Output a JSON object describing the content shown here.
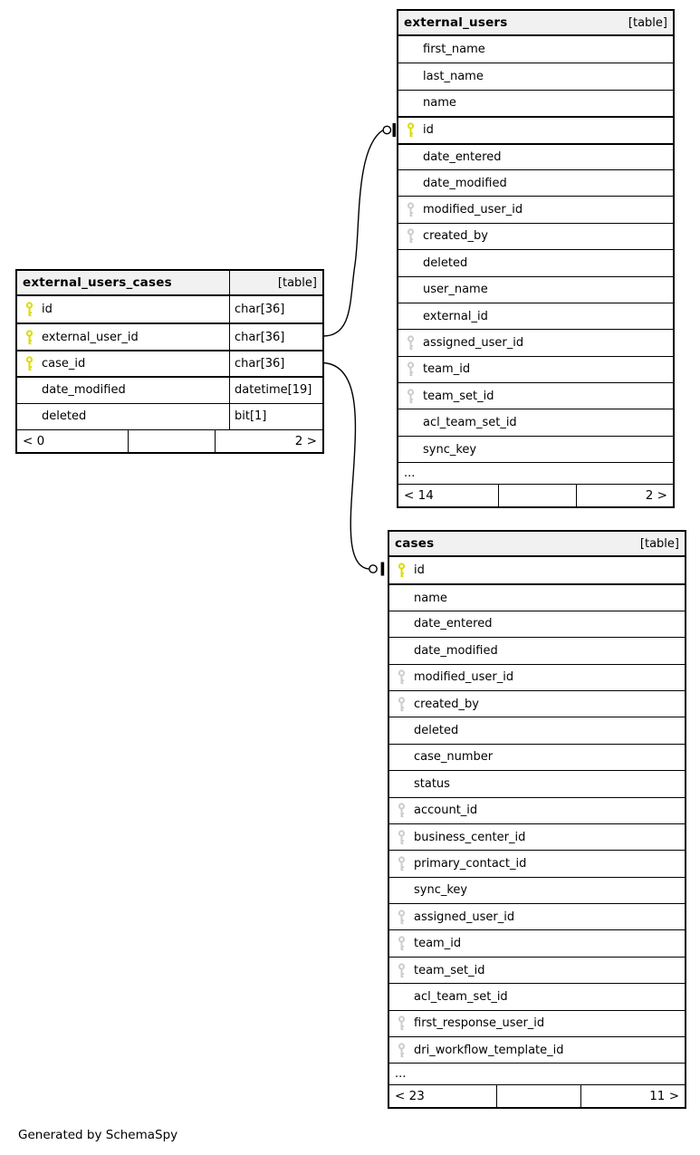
{
  "page": {
    "credit": "Generated by SchemaSpy"
  },
  "colors": {
    "primary_key": "#dcdc00",
    "foreign_key": "#cccccc",
    "header_bg": "#f1f1f1",
    "border": "#000000"
  },
  "icons": {
    "primary_key": "key-icon",
    "foreign_key": "key-icon",
    "zero_or_one_endpoint": "circle-bar-icon"
  },
  "tables": [
    {
      "name": "external_users_cases",
      "badge": "[table]",
      "has_types": true,
      "rows": [
        {
          "name": "id",
          "type": "char[36]",
          "key": "pk"
        },
        {
          "name": "external_user_id",
          "type": "char[36]",
          "key": "pk"
        },
        {
          "name": "case_id",
          "type": "char[36]",
          "key": "pk"
        },
        {
          "name": "date_modified",
          "type": "datetime[19]",
          "key": ""
        },
        {
          "name": "deleted",
          "type": "bit[1]",
          "key": ""
        }
      ],
      "pager": {
        "prev": "< 0",
        "mid": "",
        "next": "2 >"
      }
    },
    {
      "name": "external_users",
      "badge": "[table]",
      "has_types": false,
      "rows": [
        {
          "name": "first_name",
          "key": ""
        },
        {
          "name": "last_name",
          "key": ""
        },
        {
          "name": "name",
          "key": ""
        },
        {
          "name": "id",
          "key": "pk"
        },
        {
          "name": "date_entered",
          "key": ""
        },
        {
          "name": "date_modified",
          "key": ""
        },
        {
          "name": "modified_user_id",
          "key": "fk"
        },
        {
          "name": "created_by",
          "key": "fk"
        },
        {
          "name": "deleted",
          "key": ""
        },
        {
          "name": "user_name",
          "key": ""
        },
        {
          "name": "external_id",
          "key": ""
        },
        {
          "name": "assigned_user_id",
          "key": "fk"
        },
        {
          "name": "team_id",
          "key": "fk"
        },
        {
          "name": "team_set_id",
          "key": "fk"
        },
        {
          "name": "acl_team_set_id",
          "key": ""
        },
        {
          "name": "sync_key",
          "key": ""
        }
      ],
      "ellipsis": "...",
      "pager": {
        "prev": "< 14",
        "mid": "",
        "next": "2 >"
      }
    },
    {
      "name": "cases",
      "badge": "[table]",
      "has_types": false,
      "rows": [
        {
          "name": "id",
          "key": "pk"
        },
        {
          "name": "name",
          "key": ""
        },
        {
          "name": "date_entered",
          "key": ""
        },
        {
          "name": "date_modified",
          "key": ""
        },
        {
          "name": "modified_user_id",
          "key": "fk"
        },
        {
          "name": "created_by",
          "key": "fk"
        },
        {
          "name": "deleted",
          "key": ""
        },
        {
          "name": "case_number",
          "key": ""
        },
        {
          "name": "status",
          "key": ""
        },
        {
          "name": "account_id",
          "key": "fk"
        },
        {
          "name": "business_center_id",
          "key": "fk"
        },
        {
          "name": "primary_contact_id",
          "key": "fk"
        },
        {
          "name": "sync_key",
          "key": ""
        },
        {
          "name": "assigned_user_id",
          "key": "fk"
        },
        {
          "name": "team_id",
          "key": "fk"
        },
        {
          "name": "team_set_id",
          "key": "fk"
        },
        {
          "name": "acl_team_set_id",
          "key": ""
        },
        {
          "name": "first_response_user_id",
          "key": "fk"
        },
        {
          "name": "dri_workflow_template_id",
          "key": "fk"
        }
      ],
      "ellipsis": "...",
      "pager": {
        "prev": "< 23",
        "mid": "",
        "next": "11 >"
      }
    }
  ]
}
